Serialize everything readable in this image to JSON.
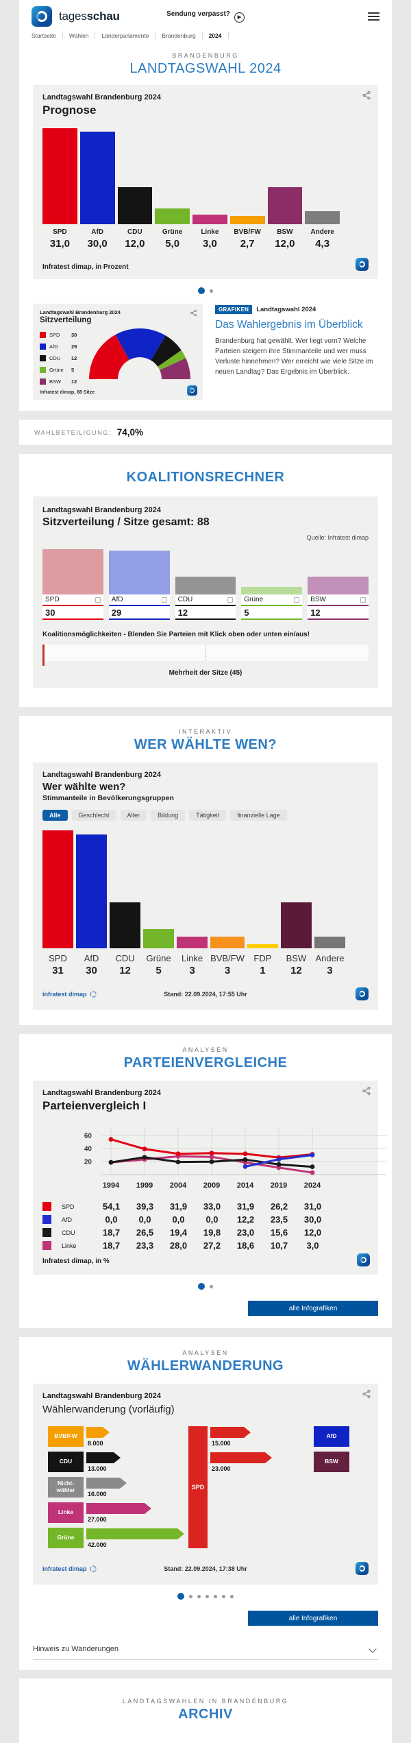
{
  "colors": {
    "accent_blue": "#2d7cc3",
    "brand_blue": "#0c5ea9",
    "button_blue": "#00549d",
    "spd": "#e10013",
    "afd": "#1023c4",
    "cdu": "#141414",
    "gruene": "#74b629",
    "linke": "#c03377",
    "bvbfw": "#f59e00",
    "bsw": "#8c2d68",
    "bsw_dark": "#5c1a3a",
    "fdp": "#ffcc00",
    "andere": "#7d7d7d",
    "nichtwaehler": "#8a8a8a"
  },
  "header": {
    "brand_regular": "tages",
    "brand_bold": "schau",
    "missed_broadcast": "Sendung verpasst?",
    "breadcrumb": [
      "Startseite",
      "Wahlen",
      "Länderparlamente",
      "Brandenburg",
      "2024"
    ]
  },
  "hero": {
    "kicker": "BRANDENBURG",
    "title": "LANDTAGSWAHL 2024"
  },
  "prognose": {
    "title": "Landtagswahl Brandenburg 2024",
    "subtitle": "Prognose",
    "source": "Infratest dimap, in Prozent",
    "chart": {
      "type": "bar",
      "categories": [
        "SPD",
        "AfD",
        "CDU",
        "Grüne",
        "Linke",
        "BVB/FW",
        "BSW",
        "Andere"
      ],
      "values": [
        31.0,
        30.0,
        12.0,
        5.0,
        3.0,
        2.7,
        12.0,
        4.3
      ],
      "value_labels": [
        "31,0",
        "30,0",
        "12,0",
        "5,0",
        "3,0",
        "2,7",
        "12,0",
        "4,3"
      ],
      "colors": [
        "#e10013",
        "#1023c4",
        "#141414",
        "#74b629",
        "#c03377",
        "#f59e00",
        "#8c2d68",
        "#7d7d7d"
      ],
      "ymax": 31,
      "ylabel": "Prozent"
    }
  },
  "seats": {
    "title": "Landtagswahl Brandenburg 2024",
    "subtitle": "Sitzverteilung",
    "source": "Infratest dimap, 88 Sitze",
    "total_seats": 88,
    "chart": {
      "type": "pie",
      "shape": "half-donut",
      "labels": [
        "SPD",
        "AfD",
        "CDU",
        "Grüne",
        "BSW"
      ],
      "values": [
        30,
        29,
        12,
        5,
        12
      ],
      "colors": [
        "#e10013",
        "#1023c4",
        "#141414",
        "#74b629",
        "#8c3069"
      ]
    }
  },
  "overview_teaser": {
    "badge": "GRAFIKEN",
    "kicker": "Landtagswahl 2024",
    "title": "Das Wahlergebnis im Überblick",
    "body": "Brandenburg hat gewählt. Wer liegt vorn? Welche Parteien steigern ihre Stimmanteile und wer muss Verluste hinnehmen? Wer erreicht wie viele Sitze im neuen Landtag? Das Ergebnis im Überblick."
  },
  "turnout": {
    "label": "WAHLBETEILIGUNG:",
    "value": "74,0%"
  },
  "coalition": {
    "heading": "KOALITIONSRECHNER",
    "title": "Landtagswahl Brandenburg 2024",
    "subtitle": "Sitzverteilung / Sitze gesamt: 88",
    "source": "Quelle: Infratest dimap",
    "total_seats": 88,
    "parties": [
      {
        "name": "SPD",
        "seats": 30,
        "color": "#dd9ba2"
      },
      {
        "name": "AfD",
        "seats": 29,
        "color": "#929fe6"
      },
      {
        "name": "CDU",
        "seats": 12,
        "color": "#949494"
      },
      {
        "name": "Grüne",
        "seats": 5,
        "color": "#b9dc9a"
      },
      {
        "name": "BSW",
        "seats": 12,
        "color": "#c290b8"
      }
    ],
    "underline_colors": [
      "#e10013",
      "#1023c4",
      "#141414",
      "#74b629",
      "#8c3069"
    ],
    "hint": "Koalitionsmöglichkeiten - Blenden Sie Parteien mit Klick oben oder unten ein/aus!",
    "majority_label": "Mehrheit der Sitze (45)"
  },
  "who_voted": {
    "kicker": "INTERAKTIV",
    "heading": "WER WÄHLTE WEN?",
    "title": "Landtagswahl Brandenburg 2024",
    "subtitle": "Wer wählte wen?",
    "description": "Stimmanteile in Bevölkerungsgruppen",
    "tabs": [
      "Alle",
      "Geschlecht",
      "Alter",
      "Bildung",
      "Tätigkeit",
      "finanzielle Lage"
    ],
    "active_tab": "Alle",
    "chart": {
      "type": "bar",
      "categories": [
        "SPD",
        "AfD",
        "CDU",
        "Grüne",
        "Linke",
        "BVB/FW",
        "FDP",
        "BSW",
        "Andere"
      ],
      "values": [
        31,
        30,
        12,
        5,
        3,
        3,
        1,
        12,
        3
      ],
      "value_labels": [
        "31",
        "30",
        "12",
        "5",
        "3",
        "3",
        "1",
        "12",
        "3"
      ],
      "colors": [
        "#e10013",
        "#1023c4",
        "#141414",
        "#74b629",
        "#c03377",
        "#f6911e",
        "#ffcc00",
        "#5c1a3a",
        "#767676"
      ],
      "ymax": 31
    },
    "source": "infratest dimap",
    "stand": "Stand: 22.09.2024, 17:55 Uhr"
  },
  "comparison": {
    "kicker": "ANALYSEN",
    "heading": "PARTEIENVERGLEICHE",
    "title": "Landtagswahl Brandenburg 2024",
    "subtitle": "Parteienvergleich I",
    "chart": {
      "type": "line",
      "x": [
        1994,
        1999,
        2004,
        2009,
        2014,
        2019,
        2024
      ],
      "yticks": [
        20,
        40,
        60
      ],
      "ylim": [
        0,
        70
      ],
      "grid": true,
      "series": [
        {
          "name": "SPD",
          "color": "#e10013",
          "values": [
            54.1,
            39.3,
            31.9,
            33.0,
            31.9,
            26.2,
            31.0
          ],
          "labels": [
            "54,1",
            "39,3",
            "31,9",
            "33,0",
            "31,9",
            "26,2",
            "31,0"
          ]
        },
        {
          "name": "AfD",
          "color": "#2330cf",
          "values": [
            0.0,
            0.0,
            0.0,
            0.0,
            12.2,
            23.5,
            30.0
          ],
          "labels": [
            "0,0",
            "0,0",
            "0,0",
            "0,0",
            "12,2",
            "23,5",
            "30,0"
          ]
        },
        {
          "name": "CDU",
          "color": "#1a1a1a",
          "values": [
            18.7,
            26.5,
            19.4,
            19.8,
            23.0,
            15.6,
            12.0
          ],
          "labels": [
            "18,7",
            "26,5",
            "19,4",
            "19,8",
            "23,0",
            "15,6",
            "12,0"
          ]
        },
        {
          "name": "Linke",
          "color": "#c03377",
          "values": [
            18.7,
            23.3,
            28.0,
            27.2,
            18.6,
            10.7,
            3.0
          ],
          "labels": [
            "18,7",
            "23,3",
            "28,0",
            "27,2",
            "18,6",
            "10,7",
            "3,0"
          ]
        }
      ]
    },
    "source": "Infratest dimap, in %",
    "button": "alle Infografiken"
  },
  "migration": {
    "kicker": "ANALYSEN",
    "heading": "WÄHLERWANDERUNG",
    "title": "Landtagswahl Brandenburg 2024",
    "subtitle": "Wählerwanderung (vorläufig)",
    "center_party": "SPD",
    "center_color": "#d92420",
    "inflows": [
      {
        "party": "BVB/FW",
        "value": 8000,
        "label": "8.000",
        "color": "#f59e00"
      },
      {
        "party": "CDU",
        "value": 13000,
        "label": "13.000",
        "color": "#141414"
      },
      {
        "party": "Nicht-wähler",
        "value": 16000,
        "label": "16.000",
        "color": "#8a8a8a"
      },
      {
        "party": "Linke",
        "value": 27000,
        "label": "27.000",
        "color": "#c03377"
      },
      {
        "party": "Grüne",
        "value": 42000,
        "label": "42.000",
        "color": "#74b629"
      }
    ],
    "outflows": [
      {
        "party": "AfD",
        "value": 15000,
        "label": "15.000",
        "box_color": "#1023c4"
      },
      {
        "party": "BSW",
        "value": 23000,
        "label": "23.000",
        "box_color": "#63203f"
      }
    ],
    "source": "infratest dimap",
    "stand": "Stand: 22.09.2024, 17:38 Uhr",
    "button": "alle Infografiken",
    "hint": "Hinweis zu Wanderungen"
  },
  "archive": {
    "kicker": "LANDTAGSWAHLEN IN BRANDENBURG",
    "heading": "ARCHIV"
  },
  "pagination": {
    "hero": {
      "count": 2,
      "active": 0
    },
    "comparison": {
      "count": 2,
      "active": 0
    },
    "migration": {
      "count": 7,
      "active": 0
    }
  }
}
